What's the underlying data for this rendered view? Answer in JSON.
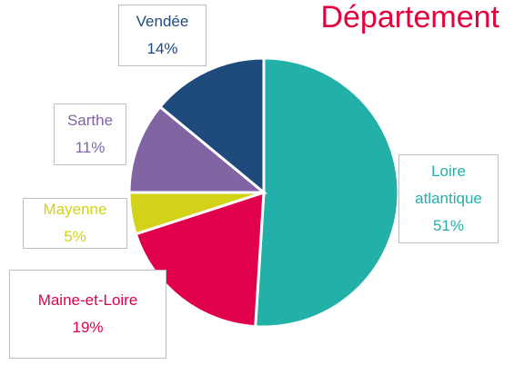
{
  "chart_data": {
    "type": "pie",
    "title": "Département",
    "categories": [
      "Loire atlantique",
      "Maine-et-Loire",
      "Mayenne",
      "Sarthe",
      "Vendée"
    ],
    "values": [
      51,
      19,
      5,
      11,
      14
    ],
    "value_labels": [
      "51%",
      "19%",
      "5%",
      "11%",
      "14%"
    ],
    "colors": [
      "#23b0a8",
      "#e0004d",
      "#d2d219",
      "#8165a3",
      "#1f4a7c"
    ]
  }
}
